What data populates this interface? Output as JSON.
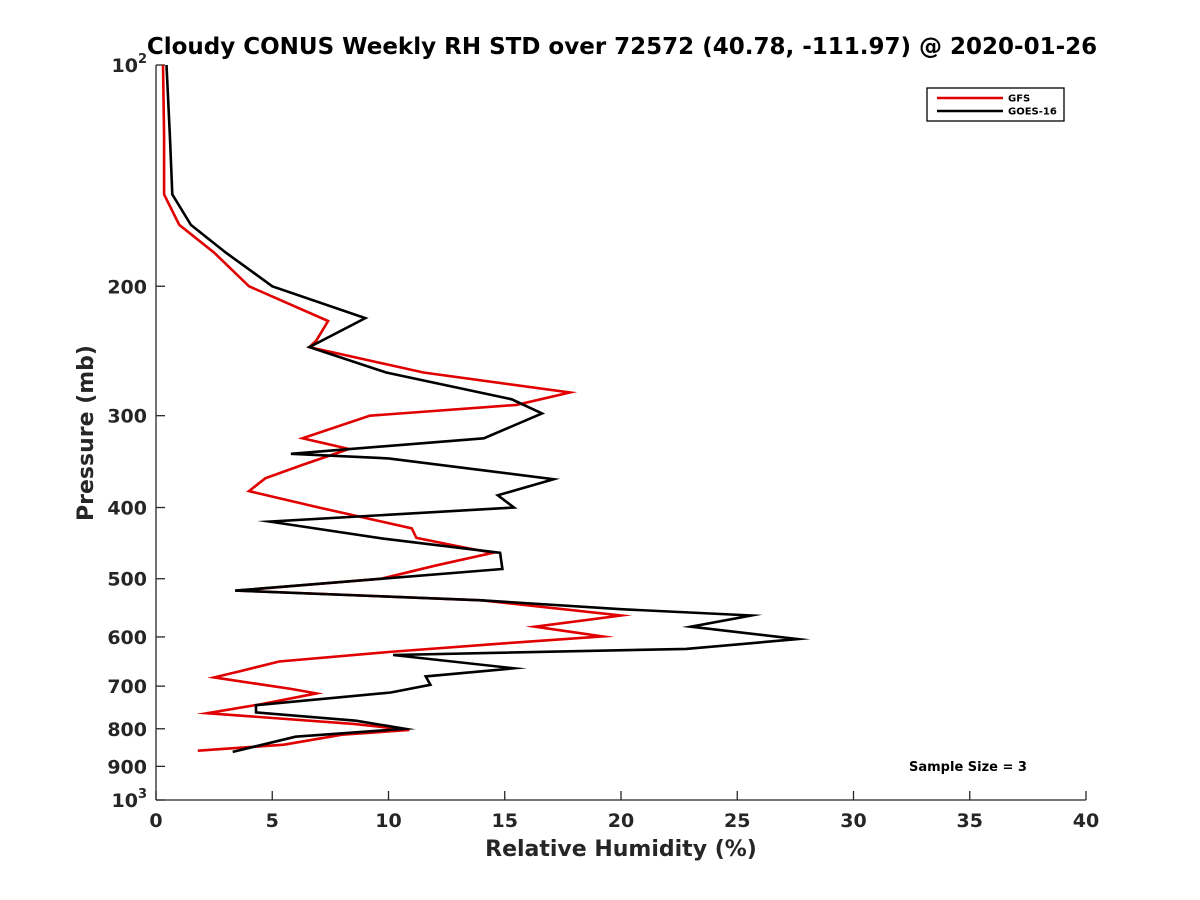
{
  "chart_data": {
    "type": "line",
    "title": "Cloudy CONUS Weekly RH STD over 72572 (40.78, -111.97) @ 2020-01-26",
    "xlabel": "Relative Humidity (%)",
    "ylabel": "Pressure (mb)",
    "xlim": [
      0,
      40
    ],
    "ylim": [
      100,
      1000
    ],
    "yscale": "log",
    "y_reversed": true,
    "grid": false,
    "x_ticks": [
      0,
      5,
      10,
      15,
      20,
      25,
      30,
      35,
      40
    ],
    "x_tick_labels": [
      "0",
      "5",
      "10",
      "15",
      "20",
      "25",
      "30",
      "35",
      "40"
    ],
    "y_ticks": [
      100,
      200,
      300,
      400,
      500,
      600,
      700,
      800,
      900,
      1000
    ],
    "y_tick_labels": [
      {
        "base": "10",
        "exp": "2"
      },
      {
        "base": "200",
        "exp": ""
      },
      {
        "base": "300",
        "exp": ""
      },
      {
        "base": "400",
        "exp": ""
      },
      {
        "base": "500",
        "exp": ""
      },
      {
        "base": "600",
        "exp": ""
      },
      {
        "base": "700",
        "exp": ""
      },
      {
        "base": "800",
        "exp": ""
      },
      {
        "base": "900",
        "exp": ""
      },
      {
        "base": "10",
        "exp": "3"
      }
    ],
    "legend_position": "top-right",
    "series": [
      {
        "name": "GFS",
        "color": "#e00000",
        "points": [
          [
            0.3,
            100
          ],
          [
            0.35,
            125
          ],
          [
            0.35,
            150
          ],
          [
            1.0,
            165
          ],
          [
            2.5,
            180
          ],
          [
            4.0,
            200
          ],
          [
            7.4,
            223
          ],
          [
            6.9,
            237
          ],
          [
            6.6,
            242
          ],
          [
            11.5,
            262
          ],
          [
            17.8,
            279
          ],
          [
            15.5,
            290
          ],
          [
            9.2,
            300
          ],
          [
            6.3,
            322
          ],
          [
            8.3,
            333
          ],
          [
            6.3,
            350
          ],
          [
            4.7,
            365
          ],
          [
            4.0,
            380
          ],
          [
            7.0,
            400
          ],
          [
            11.0,
            427
          ],
          [
            11.2,
            440
          ],
          [
            13.5,
            455
          ],
          [
            14.5,
            461
          ],
          [
            12.0,
            480
          ],
          [
            9.7,
            500
          ],
          [
            3.5,
            519
          ],
          [
            14.0,
            535
          ],
          [
            20.0,
            561
          ],
          [
            16.3,
            581
          ],
          [
            19.2,
            599
          ],
          [
            15.0,
            612
          ],
          [
            10.0,
            629
          ],
          [
            5.3,
            648
          ],
          [
            3.7,
            667
          ],
          [
            2.5,
            681
          ],
          [
            5.8,
            706
          ],
          [
            6.9,
            716
          ],
          [
            4.5,
            741
          ],
          [
            2.2,
            762
          ],
          [
            8.5,
            788
          ],
          [
            10.9,
            803
          ],
          [
            8.0,
            815
          ],
          [
            5.5,
            841
          ],
          [
            1.8,
            857
          ]
        ]
      },
      {
        "name": "GOES-16",
        "color": "#000000",
        "points": [
          [
            0.45,
            100
          ],
          [
            0.6,
            125
          ],
          [
            0.7,
            150
          ],
          [
            1.5,
            165
          ],
          [
            3.0,
            180
          ],
          [
            5.0,
            200
          ],
          [
            9.0,
            221
          ],
          [
            6.6,
            242
          ],
          [
            9.9,
            262
          ],
          [
            15.3,
            285
          ],
          [
            16.6,
            298
          ],
          [
            14.1,
            322
          ],
          [
            5.8,
            338
          ],
          [
            10.0,
            343
          ],
          [
            17.1,
            366
          ],
          [
            14.7,
            385
          ],
          [
            15.4,
            400
          ],
          [
            4.9,
            418
          ],
          [
            9.8,
            441
          ],
          [
            14.8,
            461
          ],
          [
            14.9,
            485
          ],
          [
            3.4,
            519
          ],
          [
            14.0,
            535
          ],
          [
            20.0,
            550
          ],
          [
            25.6,
            561
          ],
          [
            23.0,
            581
          ],
          [
            27.6,
            604
          ],
          [
            22.8,
            623
          ],
          [
            10.2,
            635
          ],
          [
            15.4,
            662
          ],
          [
            11.6,
            679
          ],
          [
            11.8,
            697
          ],
          [
            10.1,
            714
          ],
          [
            4.3,
            743
          ],
          [
            4.3,
            760
          ],
          [
            8.6,
            780
          ],
          [
            10.7,
            800
          ],
          [
            6.0,
            820
          ],
          [
            3.3,
            860
          ]
        ]
      }
    ],
    "annotations": [
      "Sample Size = 3"
    ]
  }
}
